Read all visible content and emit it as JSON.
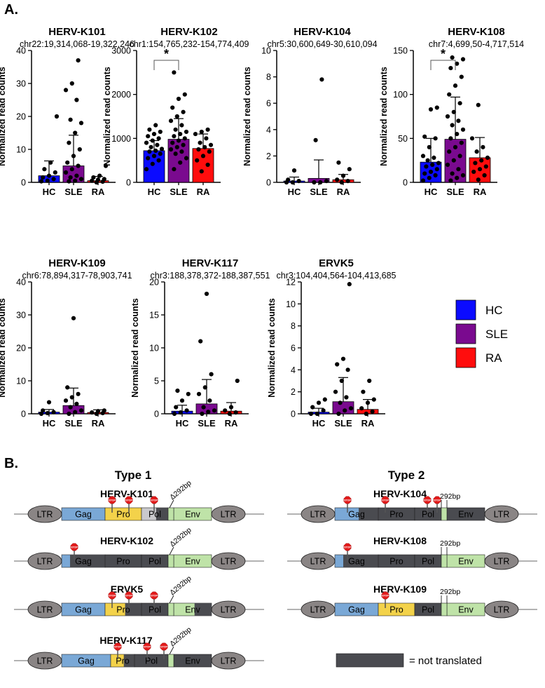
{
  "panel_a": {
    "label": "A."
  },
  "panel_b": {
    "label": "B."
  },
  "legend": [
    {
      "name": "HC",
      "color": "#0b0bff"
    },
    {
      "name": "SLE",
      "color": "#7a0a8f"
    },
    {
      "name": "RA",
      "color": "#ff0d0d"
    }
  ],
  "chart_data": [
    {
      "type": "bar",
      "title": "HERV-K101",
      "subtitle": "chr22:19,314,068-19,322,246",
      "ylabel": "Normalized read counts",
      "categories": [
        "HC",
        "SLE",
        "RA"
      ],
      "values": [
        2,
        5,
        0.5
      ],
      "errors": [
        4.5,
        9.3,
        1.3
      ],
      "ylim": [
        0,
        40
      ],
      "yticks": [
        0,
        10,
        20,
        30,
        40
      ],
      "points": [
        [
          0.3,
          0.5,
          1,
          1.5,
          2,
          3,
          4,
          6,
          20
        ],
        [
          0.3,
          0.5,
          1,
          1.5,
          2,
          3,
          4,
          5,
          6,
          8,
          10,
          12,
          15,
          18,
          19,
          25,
          28,
          30,
          37
        ],
        [
          0,
          0.2,
          0.5,
          0.8,
          1,
          1.5,
          2,
          5
        ]
      ],
      "significance": ""
    },
    {
      "type": "bar",
      "title": "HERV-K102",
      "subtitle": "chr1:154,765,232-154,774,409",
      "ylabel": "Normalized read counts",
      "categories": [
        "HC",
        "SLE",
        "RA"
      ],
      "values": [
        720,
        980,
        770
      ],
      "errors": [
        230,
        470,
        330
      ],
      "ylim": [
        0,
        3000
      ],
      "yticks": [
        0,
        1000,
        2000,
        3000
      ],
      "points": [
        [
          300,
          420,
          500,
          550,
          600,
          650,
          700,
          720,
          760,
          800,
          850,
          900,
          950,
          1000,
          1050,
          1100,
          1150,
          1200,
          1300
        ],
        [
          300,
          450,
          550,
          650,
          700,
          750,
          800,
          850,
          900,
          950,
          1000,
          1050,
          1100,
          1150,
          1200,
          1300,
          1400,
          1500,
          1600,
          1700,
          1900,
          2000,
          2500
        ],
        [
          250,
          400,
          500,
          600,
          700,
          750,
          800,
          850,
          900,
          1000,
          1100,
          1150,
          1200
        ]
      ],
      "significance": "*",
      "sig_pair": [
        0,
        1
      ]
    },
    {
      "type": "bar",
      "title": "HERV-K104",
      "subtitle": "chr5:30,600,649-30,610,094",
      "ylabel": "Normalized read counts",
      "categories": [
        "HC",
        "SLE",
        "RA"
      ],
      "values": [
        0.1,
        0.3,
        0.2
      ],
      "errors": [
        0.3,
        1.4,
        0.4
      ],
      "ylim": [
        0,
        10
      ],
      "yticks": [
        0,
        2,
        4,
        6,
        8,
        10
      ],
      "points": [
        [
          0,
          0,
          0.1,
          0.2,
          0.9
        ],
        [
          0,
          0,
          0.1,
          3.2,
          7.8
        ],
        [
          0,
          0.1,
          0.2,
          0.5,
          1,
          1.5
        ]
      ],
      "significance": ""
    },
    {
      "type": "bar",
      "title": "HERV-K108",
      "subtitle": "chr7:4,699,50-4,717,514",
      "ylabel": "Normalized read counts",
      "categories": [
        "HC",
        "SLE",
        "RA"
      ],
      "values": [
        23,
        49,
        28
      ],
      "errors": [
        27,
        48,
        23
      ],
      "ylim": [
        0,
        150
      ],
      "yticks": [
        0,
        50,
        100,
        150
      ],
      "points": [
        [
          2,
          5,
          8,
          10,
          12,
          15,
          18,
          20,
          22,
          25,
          28,
          30,
          40,
          50,
          52,
          83,
          85
        ],
        [
          2,
          5,
          8,
          10,
          15,
          20,
          25,
          30,
          35,
          40,
          45,
          50,
          55,
          60,
          65,
          70,
          75,
          80,
          90,
          100,
          110,
          120,
          130,
          135,
          140,
          142
        ],
        [
          3,
          8,
          12,
          15,
          18,
          22,
          25,
          28,
          35,
          40,
          50,
          88
        ]
      ],
      "significance": "*",
      "sig_pair": [
        0,
        1
      ]
    },
    {
      "type": "bar",
      "title": "HERV-K109",
      "subtitle": "chr6:78,894,317-78,903,741",
      "ylabel": "Normalized read counts",
      "categories": [
        "HC",
        "SLE",
        "RA"
      ],
      "values": [
        0.5,
        2.5,
        0.4
      ],
      "errors": [
        0.8,
        5.3,
        0.8
      ],
      "ylim": [
        0,
        40
      ],
      "yticks": [
        0,
        10,
        20,
        30,
        40
      ],
      "points": [
        [
          0,
          0.2,
          0.5,
          1,
          3.5
        ],
        [
          0,
          0.5,
          1,
          2,
          3,
          4,
          5,
          6,
          8,
          29
        ],
        [
          0,
          0.2,
          0.4,
          0.8,
          1
        ]
      ],
      "significance": ""
    },
    {
      "type": "bar",
      "title": "HERV-K117",
      "subtitle": "chr3:188,378,372-188,387,551",
      "ylabel": "Normalized read counts",
      "categories": [
        "HC",
        "SLE",
        "RA"
      ],
      "values": [
        0.4,
        1.5,
        0.4
      ],
      "errors": [
        0.9,
        3.7,
        1.3
      ],
      "ylim": [
        0,
        20
      ],
      "yticks": [
        0,
        5,
        10,
        15,
        20
      ],
      "points": [
        [
          0,
          0.2,
          0.5,
          1,
          2,
          3,
          3.5
        ],
        [
          0,
          0.3,
          0.5,
          1,
          2,
          3,
          4,
          6,
          11,
          18.2
        ],
        [
          0,
          0.2,
          0.5,
          1,
          5
        ]
      ],
      "significance": ""
    },
    {
      "type": "bar",
      "title": "ERVK5",
      "subtitle": "chr3:104,404,564-104,413,685",
      "ylabel": "Normalized read counts",
      "categories": [
        "HC",
        "SLE",
        "RA"
      ],
      "values": [
        0.15,
        1.1,
        0.4
      ],
      "errors": [
        0.35,
        2.2,
        0.9
      ],
      "ylim": [
        0,
        12
      ],
      "yticks": [
        0,
        2,
        4,
        6,
        8,
        10,
        12
      ],
      "points": [
        [
          0,
          0,
          0.3,
          0.6,
          1,
          1.3
        ],
        [
          0,
          0.3,
          0.5,
          1,
          1.5,
          2,
          3,
          4,
          4.5,
          5,
          11.8
        ],
        [
          0,
          0.2,
          0.5,
          1,
          1.3,
          2,
          3
        ]
      ],
      "significance": ""
    }
  ],
  "genome_maps": {
    "types": [
      {
        "title": "Type 1",
        "rows": [
          {
            "name": "HERV-K101",
            "annotation": "Δ292bp",
            "stops": [
              2,
              2,
              3
            ]
          },
          {
            "name": "HERV-K102",
            "annotation": "Δ292bp",
            "stops": [
              1
            ]
          },
          {
            "name": "ERVK5",
            "annotation": "Δ292bp",
            "stops": [
              2,
              2,
              3
            ]
          },
          {
            "name": "HERV-K117",
            "annotation": "Δ292bp",
            "stops": [
              2,
              3,
              3
            ]
          }
        ]
      },
      {
        "title": "Type 2",
        "rows": [
          {
            "name": "HERV-K104",
            "annotation": "292bp",
            "stops": [
              1,
              2,
              3,
              3
            ]
          },
          {
            "name": "HERV-K108",
            "annotation": "292bp",
            "stops": [
              1
            ]
          },
          {
            "name": "HERV-K109",
            "annotation": "292bp",
            "stops": [
              2
            ]
          }
        ]
      }
    ],
    "segments": [
      "LTR",
      "Gag",
      "Pro",
      "Pol",
      "Env",
      "LTR"
    ],
    "stop_label": "STOP",
    "legend_text": "= not translated"
  }
}
